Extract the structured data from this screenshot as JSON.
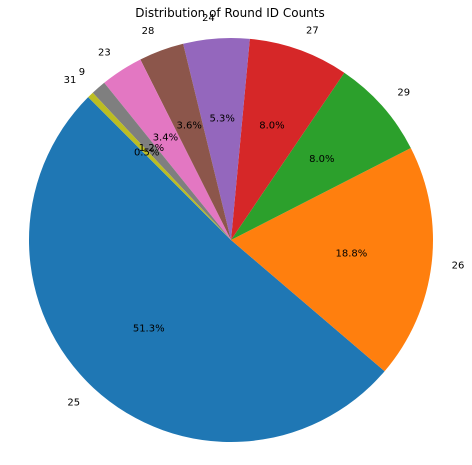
{
  "chart_data": {
    "type": "pie",
    "title": "Distribution of Round ID Counts",
    "categories": [
      "25",
      "26",
      "29",
      "27",
      "24",
      "28",
      "23",
      "9",
      "31"
    ],
    "values": [
      51.3,
      18.8,
      8.0,
      8.0,
      5.3,
      3.6,
      3.4,
      1.2,
      0.5
    ],
    "percent_labels": [
      "51.3%",
      "18.8%",
      "8.0%",
      "8.0%",
      "5.3%",
      "3.6%",
      "3.4%",
      "1.2%",
      "0.5%"
    ],
    "colors": [
      "#1f77b4",
      "#ff7f0e",
      "#2ca02c",
      "#d62728",
      "#9467bd",
      "#8c564b",
      "#e377c2",
      "#7f7f7f",
      "#bcbd22"
    ],
    "start_angle_deg": 135,
    "direction": "counterclockwise",
    "legend": "none",
    "grid": false
  }
}
